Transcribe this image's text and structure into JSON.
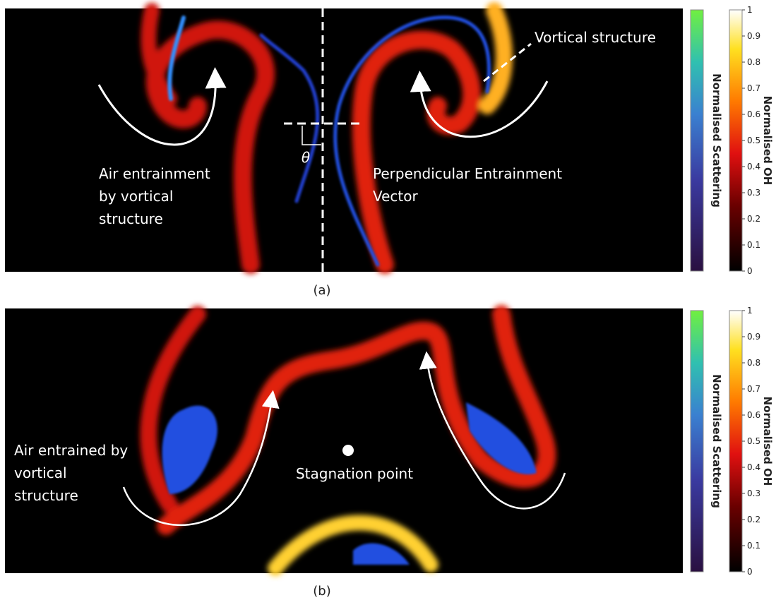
{
  "panels": [
    {
      "label": "(a)",
      "annotations": [
        {
          "lines": [
            "Vortical structure"
          ]
        },
        {
          "lines": [
            "Air entrainment",
            "by vortical",
            "structure"
          ]
        },
        {
          "lines": [
            "Perpendicular Entrainment",
            "Vector"
          ]
        },
        {
          "lines": [
            "θ"
          ]
        }
      ],
      "colorbars": [
        {
          "label": "Normalised Scattering"
        },
        {
          "label": "Normalised OH",
          "ticks": [
            0,
            0.1,
            0.2,
            0.3,
            0.4,
            0.5,
            0.6,
            0.7,
            0.8,
            0.9,
            1
          ]
        }
      ]
    },
    {
      "label": "(b)",
      "annotations": [
        {
          "lines": [
            "Air entrained by",
            "vortical",
            "structure"
          ]
        },
        {
          "lines": [
            "Stagnation point"
          ]
        }
      ],
      "colorbars": [
        {
          "label": "Normalised Scattering"
        },
        {
          "label": "Normalised OH",
          "ticks": [
            0,
            0.1,
            0.2,
            0.3,
            0.4,
            0.5,
            0.6,
            0.7,
            0.8,
            0.9,
            1
          ]
        }
      ]
    }
  ]
}
